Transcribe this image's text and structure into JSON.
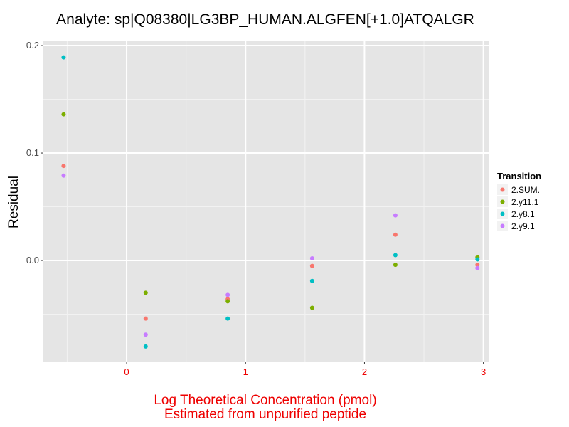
{
  "chart_data": {
    "type": "scatter",
    "title": "Analyte: sp|Q08380|LG3BP_HUMAN.ALGFEN[+1.0]ATQALGR",
    "xlabel": [
      "Log Theoretical Concentration (pmol)",
      "Estimated from unpurified peptide"
    ],
    "ylabel": "Residual",
    "xlim": [
      -0.7,
      3.05
    ],
    "ylim": [
      -0.094,
      0.204
    ],
    "x_ticks": [
      0,
      1,
      2,
      3
    ],
    "y_ticks": [
      0.0,
      0.1,
      0.2
    ],
    "y_tick_labels": [
      "0.0",
      "0.1",
      "0.2"
    ],
    "grid": true,
    "legend_position": "right",
    "legend_title": "Transition",
    "colors": {
      "panel": "#e5e5e5",
      "grid_major": "#ffffff",
      "grid_minor": "#f2f2f2",
      "axis_title_x": "#ee0000",
      "tick_x": "#ee0000",
      "tick_y": "#4d4d4d"
    },
    "series": [
      {
        "name": "2.SUM.",
        "color": "#F8766D",
        "x": [
          -0.53,
          0.16,
          0.85,
          1.56,
          2.26,
          2.95
        ],
        "y": [
          0.088,
          -0.054,
          -0.036,
          -0.005,
          0.024,
          -0.004
        ]
      },
      {
        "name": "2.y11.1",
        "color": "#7CAE00",
        "x": [
          -0.53,
          0.16,
          0.85,
          1.56,
          2.26,
          2.95
        ],
        "y": [
          0.136,
          -0.03,
          -0.038,
          -0.044,
          -0.004,
          0.003
        ]
      },
      {
        "name": "2.y8.1",
        "color": "#00BFC4",
        "x": [
          -0.53,
          0.16,
          0.85,
          1.56,
          2.26,
          2.95
        ],
        "y": [
          0.189,
          -0.08,
          -0.054,
          -0.019,
          0.005,
          0.001
        ]
      },
      {
        "name": "2.y9.1",
        "color": "#C77CFF",
        "x": [
          -0.53,
          0.16,
          0.85,
          1.56,
          2.26,
          2.95
        ],
        "y": [
          0.079,
          -0.069,
          -0.032,
          0.002,
          0.042,
          -0.007
        ]
      }
    ]
  }
}
